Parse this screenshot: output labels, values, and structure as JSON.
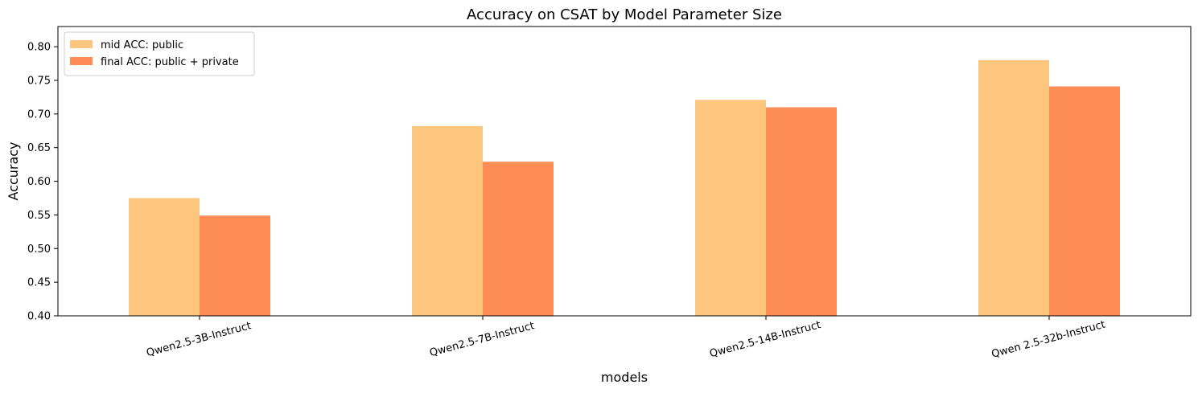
{
  "chart_data": {
    "type": "bar",
    "title": "Accuracy on CSAT by Model Parameter Size",
    "xlabel": "models",
    "ylabel": "Accuracy",
    "categories": [
      "Qwen2.5-3B-Instruct",
      "Qwen2.5-7B-Instruct",
      "Qwen2.5-14B-Instruct",
      "Qwen 2.5-32b-Instruct"
    ],
    "series": [
      {
        "name": "mid ACC: public",
        "color": "#fdc67f",
        "values": [
          0.575,
          0.682,
          0.721,
          0.78
        ]
      },
      {
        "name": "final ACC: public + private",
        "color": "#fe8c56",
        "values": [
          0.549,
          0.629,
          0.71,
          0.741
        ]
      }
    ],
    "ylim": [
      0.4,
      0.83
    ],
    "yticks": [
      0.4,
      0.45,
      0.5,
      0.55,
      0.6,
      0.65,
      0.7,
      0.75,
      0.8
    ],
    "ytick_labels": [
      "0.40",
      "0.45",
      "0.50",
      "0.55",
      "0.60",
      "0.65",
      "0.70",
      "0.75",
      "0.80"
    ],
    "grid": false,
    "legend_position": "top-left",
    "xtick_rotation": "rotated"
  }
}
